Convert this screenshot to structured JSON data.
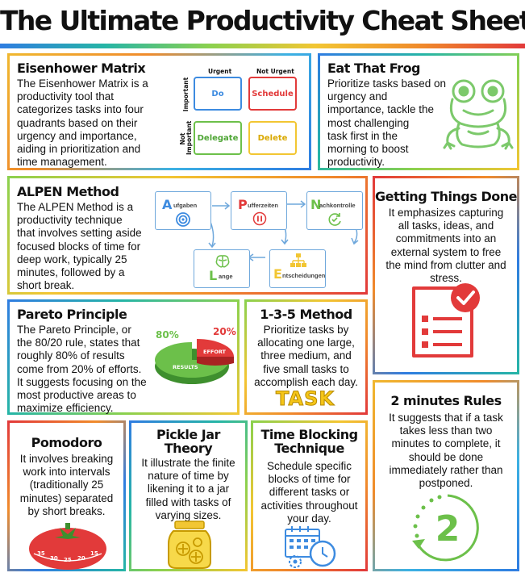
{
  "title": "The Ultimate Productivity Cheat Sheet",
  "cards": {
    "eisenhower": {
      "heading": "Eisenhower Matrix",
      "lines": [
        "The Eisenhower Matrix is a",
        "productivity tool that",
        "categorizes tasks into four",
        "quadrants based on their",
        "urgency and importance,",
        "aiding in prioritization and",
        "time management."
      ],
      "matrix": {
        "col_labels": [
          "Urgent",
          "Not Urgent"
        ],
        "row_labels": [
          "Important",
          "Not Important"
        ],
        "cells": [
          "Do",
          "Schedule",
          "Delegate",
          "Delete"
        ]
      }
    },
    "frog": {
      "heading": "Eat That Frog",
      "lines": [
        "Prioritize tasks based on",
        "urgency and",
        "importance, tackle the",
        "most challenging",
        "task first in the",
        "morning to boost",
        "productivity."
      ]
    },
    "alpen": {
      "heading": "ALPEN Method",
      "lines": [
        "The ALPEN Method is a",
        "productivity technique",
        "that involves setting aside",
        "focused blocks of time for",
        "deep work, typically 25",
        "minutes, followed by a",
        "short break."
      ],
      "steps": [
        {
          "letter": "A",
          "rest": "ufgaben"
        },
        {
          "letter": "L",
          "rest": "ange"
        },
        {
          "letter": "P",
          "rest": "ufferzeiten"
        },
        {
          "letter": "E",
          "rest": "ntscheidungen"
        },
        {
          "letter": "N",
          "rest": "achkontrolle"
        }
      ]
    },
    "gtd": {
      "heading": "Getting Things Done",
      "lines": [
        "It emphasizes capturing",
        "all tasks, ideas, and",
        "commitments into an",
        "external system to free",
        "the mind from clutter and",
        "stress."
      ]
    },
    "pareto": {
      "heading": "Pareto Principle",
      "lines": [
        "The Pareto Principle, or",
        "the 80/20 rule, states that",
        "roughly 80% of results",
        "come from 20% of efforts.",
        "It suggests focusing on the",
        "most productive areas to",
        "maximize efficiency."
      ],
      "pct_results": "80%",
      "pct_effort": "20%",
      "label_effort": "EFFORT",
      "label_results": "RESULTS"
    },
    "m135": {
      "heading": "1-3-5 Method",
      "lines": [
        "Prioritize tasks by",
        "allocating one large,",
        "three medium, and",
        "five small tasks to",
        "accomplish each day."
      ],
      "badge": "TASK"
    },
    "two_min": {
      "heading": "2 minutes Rules",
      "lines": [
        "It suggests that if a task",
        "takes less than two",
        "minutes to complete, it",
        "should be done",
        "immediately rather than",
        "postponed."
      ],
      "clock_number": "2"
    },
    "pomodoro": {
      "heading": "Pomodoro",
      "lines": [
        "It involves breaking",
        "work into intervals",
        "(traditionally 25",
        "minutes) separated",
        "by short breaks."
      ],
      "dial": [
        "35",
        "30",
        "25",
        "20",
        "15"
      ]
    },
    "pickle": {
      "heading_lines": [
        "Pickle Jar",
        "Theory"
      ],
      "lines": [
        "It illustrate the finite",
        "nature of time by",
        "likening it to a jar",
        "filled with tasks of",
        "varying sizes."
      ]
    },
    "timeblock": {
      "heading_lines": [
        "Time Blocking",
        "Technique"
      ],
      "lines": [
        "Schedule specific",
        "blocks of time for",
        "different tasks or",
        "activities throughout",
        "your day."
      ]
    }
  },
  "colors": {
    "blue": "#3d8be0",
    "red": "#e23a3a",
    "green": "#6cc04a",
    "yellow": "#f2c633",
    "frog": "#7cc96b"
  }
}
